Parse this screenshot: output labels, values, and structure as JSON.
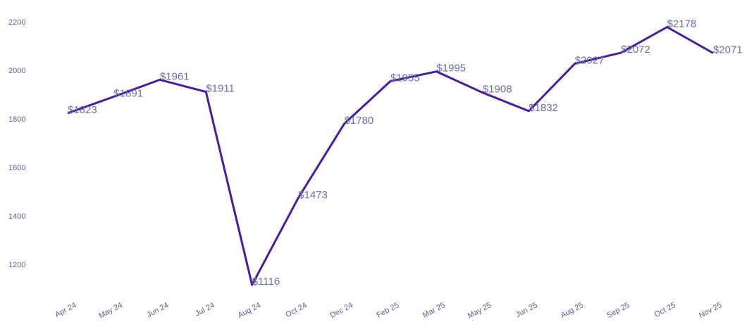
{
  "chart_data": {
    "type": "line",
    "title": "",
    "xlabel": "",
    "ylabel": "",
    "categories": [
      "Apr 24",
      "May 24",
      "Jun 24",
      "Jul 24",
      "Aug 24",
      "Oct 24",
      "Dec 24",
      "Feb 25",
      "Mar 25",
      "May 25",
      "Jun 25",
      "Aug 25",
      "Sep 25",
      "Oct 25",
      "Nov 25"
    ],
    "values": [
      1823,
      1891,
      1961,
      1911,
      1116,
      1473,
      1780,
      1955,
      1995,
      1908,
      1832,
      2027,
      2072,
      2178,
      2071
    ],
    "data_labels": [
      "$1823",
      "$1891",
      "$1961",
      "$1911",
      "$1116",
      "$1473",
      "$1780",
      "$1955",
      "$1995",
      "$1908",
      "$1832",
      "$2027",
      "$2072",
      "$2178",
      "$2071"
    ],
    "yticks": [
      1200,
      1400,
      1600,
      1800,
      2000,
      2200
    ],
    "ylim": [
      1090,
      2220
    ],
    "grid": false,
    "legend": "none",
    "line_color": "#4a1aa0"
  }
}
